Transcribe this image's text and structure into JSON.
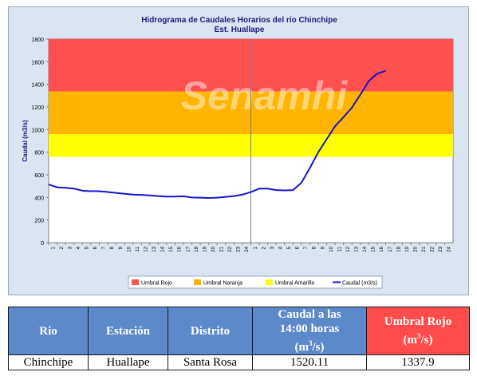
{
  "chart_data": {
    "type": "line",
    "title": "Hidrograma de Caudales Horarios del río Chinchipe",
    "subtitle": "Est. Huallape",
    "ylabel": "Caudal  (m3/s)",
    "xlabel": "",
    "ylim": [
      0,
      1800
    ],
    "yticks": [
      0,
      200,
      400,
      600,
      800,
      1000,
      1200,
      1400,
      1600,
      1800
    ],
    "x_tick_labels": [
      "1",
      "2",
      "3",
      "4",
      "5",
      "6",
      "7",
      "8",
      "9",
      "10",
      "11",
      "12",
      "13",
      "14",
      "15",
      "16",
      "17",
      "18",
      "19",
      "20",
      "21",
      "22",
      "23",
      "24",
      "1",
      "2",
      "3",
      "4",
      "5",
      "6",
      "7",
      "8",
      "9",
      "10",
      "11",
      "12",
      "13",
      "14",
      "15",
      "16",
      "17",
      "18",
      "19",
      "20",
      "21",
      "22",
      "23",
      "24"
    ],
    "day_divider_after_tick": 24,
    "bands": [
      {
        "name": "Umbral Rojo",
        "from": 1337.9,
        "to": 1800,
        "color": "#ff5050"
      },
      {
        "name": "Umbral Naranja",
        "from": 960,
        "to": 1337.9,
        "color": "#ffb400"
      },
      {
        "name": "Umbral Amarillo",
        "from": 760,
        "to": 960,
        "color": "#ffff00"
      }
    ],
    "series": [
      {
        "name": "Caudal (m3/s)",
        "color": "#1515c8",
        "values": [
          515,
          490,
          485,
          478,
          460,
          455,
          455,
          448,
          440,
          432,
          425,
          423,
          418,
          412,
          408,
          408,
          410,
          400,
          398,
          395,
          398,
          405,
          412,
          425,
          448,
          478,
          478,
          465,
          462,
          465,
          530,
          660,
          800,
          915,
          1030,
          1110,
          1195,
          1310,
          1430,
          1495,
          1520
        ]
      }
    ],
    "legend_position": "bottom",
    "watermark": "Senamhi"
  },
  "table": {
    "headers": {
      "rio": "Rio",
      "estacion": "Estación",
      "distrito": "Distrito",
      "caudal_line1": "Caudal a las",
      "caudal_line2": "14:00 horas",
      "caudal_unit": "(m",
      "caudal_unit_sup": "3",
      "caudal_unit_end": "/s)",
      "umbral_line1": "Umbral Rojo",
      "umbral_unit": "(m",
      "umbral_unit_sup": "3",
      "umbral_unit_end": "/s)"
    },
    "row": {
      "rio": "Chinchipe",
      "estacion": "Huallape",
      "distrito": "Santa Rosa",
      "caudal": "1520.11",
      "umbral": "1337.9"
    }
  }
}
